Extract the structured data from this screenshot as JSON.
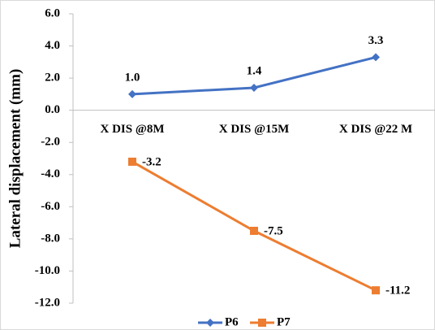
{
  "chart_data": {
    "type": "line",
    "y_label": "Lateral displacement (mm)",
    "categories": [
      "X DIS @8M",
      "X DIS @15M",
      "X DIS @22 M"
    ],
    "series": [
      {
        "name": "P6",
        "color": "#4472c4",
        "marker": "diamond",
        "values": [
          1.0,
          1.4,
          3.3
        ],
        "value_labels": [
          "1.0",
          "1.4",
          "3.3"
        ]
      },
      {
        "name": "P7",
        "color": "#ed7d31",
        "marker": "square",
        "values": [
          -3.2,
          -7.5,
          -11.2
        ],
        "value_labels": [
          "-3.2",
          "-7.5",
          "-11.2"
        ]
      }
    ],
    "ylim": [
      -12,
      6
    ],
    "yticks": [
      {
        "value": 6,
        "label": "6.0"
      },
      {
        "value": 4,
        "label": "4.0"
      },
      {
        "value": 2,
        "label": "2.0"
      },
      {
        "value": 0,
        "label": "0.0"
      },
      {
        "value": -2,
        "label": "-2.0"
      },
      {
        "value": -4,
        "label": "-4.0"
      },
      {
        "value": -6,
        "label": "-6.0"
      },
      {
        "value": -8,
        "label": "-8.0"
      },
      {
        "value": -10,
        "label": "-10.0"
      },
      {
        "value": -12,
        "label": "-12.0"
      }
    ],
    "grid": false,
    "legend": "bottom"
  }
}
